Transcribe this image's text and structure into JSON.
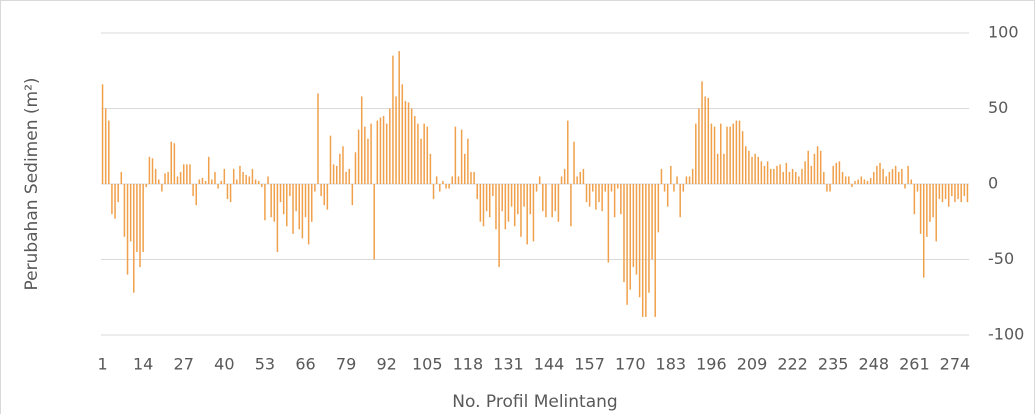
{
  "chart_data": {
    "type": "bar",
    "x_label": "No. Profil Melintang",
    "y_label": "Perubahan  Sedimen (m²)",
    "categories": [
      1,
      null,
      null,
      null,
      null,
      null,
      null,
      null,
      null,
      null,
      null,
      null,
      null,
      14,
      null,
      null,
      null,
      null,
      null,
      null,
      null,
      null,
      null,
      null,
      null,
      null,
      27,
      null,
      null,
      null,
      null,
      null,
      null,
      null,
      null,
      null,
      null,
      null,
      null,
      40,
      null,
      null,
      null,
      null,
      null,
      null,
      null,
      null,
      null,
      null,
      null,
      null,
      53,
      null,
      null,
      null,
      null,
      null,
      null,
      null,
      null,
      null,
      null,
      null,
      null,
      66,
      null,
      null,
      null,
      null,
      null,
      null,
      null,
      null,
      null,
      null,
      null,
      null,
      79,
      null,
      null,
      null,
      null,
      null,
      null,
      null,
      null,
      null,
      null,
      null,
      null,
      92,
      null,
      null,
      null,
      null,
      null,
      null,
      null,
      null,
      null,
      null,
      null,
      null,
      105,
      null,
      null,
      null,
      null,
      null,
      null,
      null,
      null,
      null,
      null,
      null,
      null,
      118,
      null,
      null,
      null,
      null,
      null,
      null,
      null,
      null,
      null,
      null,
      null,
      null,
      131,
      null,
      null,
      null,
      null,
      null,
      null,
      null,
      null,
      null,
      null,
      null,
      null,
      144,
      null,
      null,
      null,
      null,
      null,
      null,
      null,
      null,
      null,
      null,
      null,
      null,
      157,
      null,
      null,
      null,
      null,
      null,
      null,
      null,
      null,
      null,
      null,
      null,
      null,
      170,
      null,
      null,
      null,
      null,
      null,
      null,
      null,
      null,
      null,
      null,
      null,
      null,
      183,
      null,
      null,
      null,
      null,
      null,
      null,
      null,
      null,
      null,
      null,
      null,
      null,
      196,
      null,
      null,
      null,
      null,
      null,
      null,
      null,
      null,
      null,
      null,
      null,
      null,
      209,
      null,
      null,
      null,
      null,
      null,
      null,
      null,
      null,
      null,
      null,
      null,
      null,
      222,
      null,
      null,
      null,
      null,
      null,
      null,
      null,
      null,
      null,
      null,
      null,
      null,
      235,
      null,
      null,
      null,
      null,
      null,
      null,
      null,
      null,
      null,
      null,
      null,
      null,
      248,
      null,
      null,
      null,
      null,
      null,
      null,
      null,
      null,
      null,
      null,
      null,
      null,
      261,
      null,
      null,
      null,
      null,
      null,
      null,
      null,
      null,
      null,
      null,
      null,
      null,
      274,
      null,
      null,
      null,
      null
    ],
    "values": [
      66,
      50,
      42,
      -20,
      -23,
      -12,
      8,
      -35,
      -60,
      -38,
      -72,
      -45,
      -55,
      -45,
      -2,
      18,
      17,
      10,
      3,
      -5,
      7,
      8,
      28,
      27,
      5,
      8,
      13,
      13,
      13,
      -8,
      -14,
      3,
      4,
      2,
      18,
      3,
      8,
      -3,
      2,
      10,
      -10,
      -12,
      10,
      3,
      12,
      8,
      6,
      5,
      10,
      3,
      2,
      -2,
      -24,
      5,
      -22,
      -25,
      -45,
      -12,
      -20,
      -28,
      -8,
      -33,
      -18,
      -30,
      -36,
      -22,
      -40,
      -25,
      -5,
      60,
      -8,
      -14,
      -17,
      32,
      13,
      12,
      20,
      25,
      8,
      10,
      -14,
      21,
      36,
      58,
      38,
      30,
      40,
      -50,
      42,
      44,
      45,
      40,
      50,
      85,
      58,
      88,
      66,
      55,
      54,
      50,
      45,
      40,
      30,
      40,
      38,
      20,
      -10,
      5,
      -5,
      2,
      -3,
      -3,
      5,
      38,
      5,
      36,
      20,
      30,
      8,
      8,
      -10,
      -25,
      -28,
      -18,
      -22,
      -8,
      -30,
      -55,
      -18,
      -30,
      -25,
      -15,
      -28,
      -20,
      -35,
      -15,
      -40,
      -20,
      -38,
      -5,
      5,
      -18,
      -22,
      0,
      -22,
      -18,
      -25,
      5,
      10,
      42,
      -28,
      28,
      5,
      8,
      10,
      -12,
      -15,
      -5,
      -17,
      -12,
      -18,
      -5,
      -52,
      -5,
      -22,
      -3,
      -20,
      -65,
      -80,
      -70,
      -55,
      -60,
      -75,
      -88,
      -88,
      -72,
      -50,
      -88,
      -32,
      10,
      -5,
      -15,
      12,
      -5,
      5,
      -22,
      -5,
      5,
      5,
      10,
      40,
      50,
      68,
      58,
      57,
      40,
      38,
      20,
      40,
      20,
      38,
      38,
      40,
      42,
      42,
      35,
      25,
      22,
      18,
      20,
      18,
      15,
      12,
      15,
      10,
      10,
      12,
      13,
      8,
      14,
      8,
      10,
      8,
      5,
      10,
      15,
      22,
      12,
      20,
      25,
      22,
      8,
      -5,
      -5,
      12,
      14,
      15,
      8,
      5,
      5,
      -2,
      2,
      3,
      5,
      3,
      2,
      4,
      8,
      12,
      14,
      10,
      5,
      8,
      10,
      12,
      8,
      10,
      -3,
      12,
      3,
      -20,
      -5,
      -33,
      -62,
      -35,
      -25,
      -22,
      -38,
      -10,
      -12,
      -10,
      -15,
      -8,
      -12,
      -10,
      -12,
      -8,
      -12
    ],
    "color": "#f0a04b",
    "ylim": [
      -100,
      100
    ],
    "yticks": [
      -100,
      -50,
      0,
      50,
      100
    ],
    "grid": true
  }
}
